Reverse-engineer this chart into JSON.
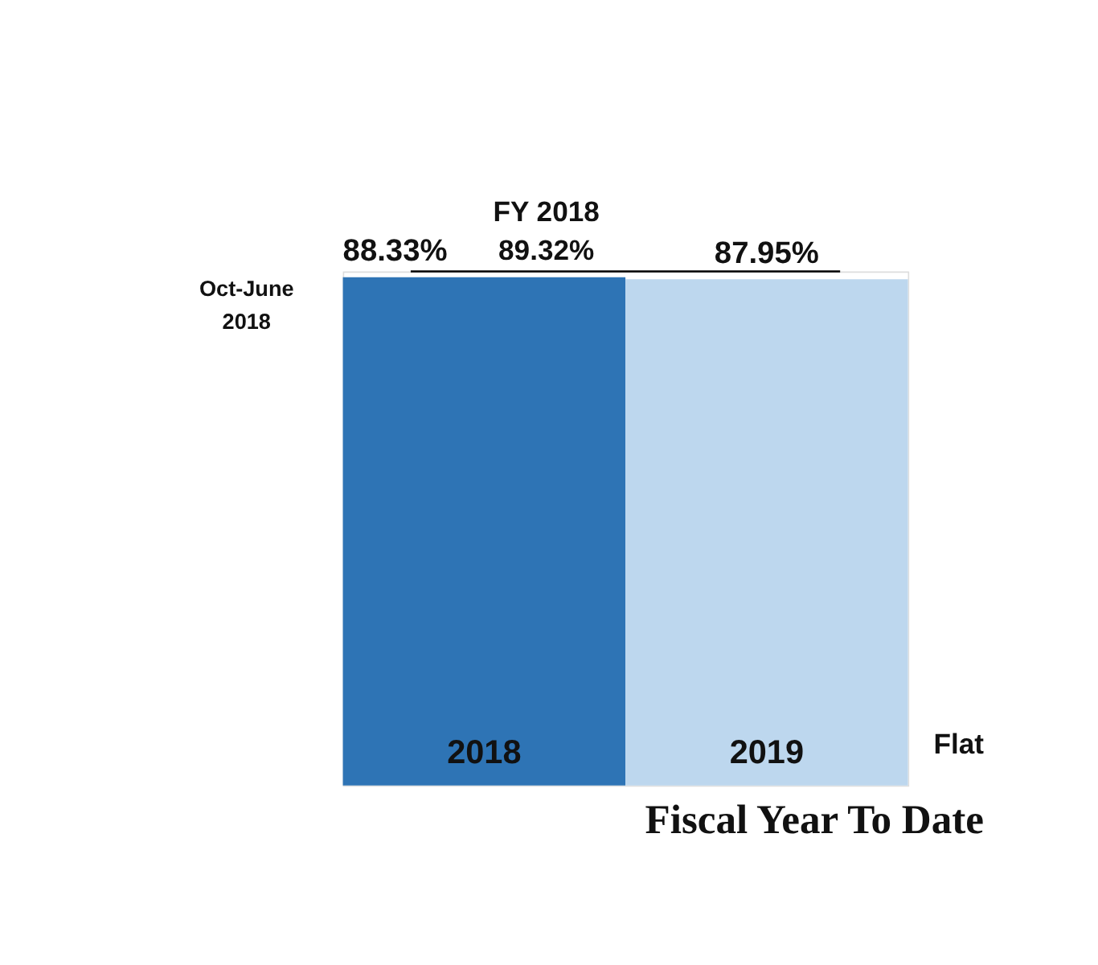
{
  "chart_data": {
    "type": "bar",
    "title": "Fiscal Year To Date",
    "categories": [
      "2018",
      "2019"
    ],
    "values": [
      88.33,
      87.95
    ],
    "colors": [
      "#2e74b5",
      "#bdd7ee"
    ],
    "value_labels": [
      "88.33%",
      "87.95%"
    ],
    "ref_lines": [
      {
        "axis": "y",
        "value": 89.32,
        "label": "FY 2018\n89.32%",
        "color": "#000000"
      }
    ],
    "annotations": [
      "Oct-June\n2018",
      "Flat"
    ]
  }
}
